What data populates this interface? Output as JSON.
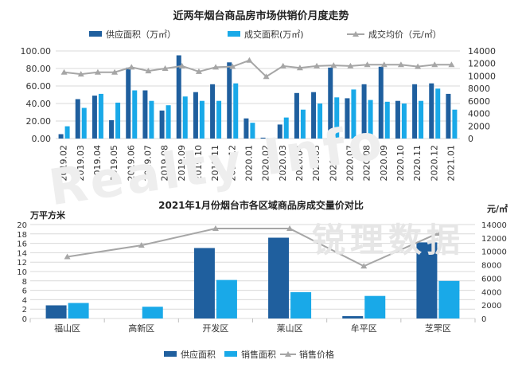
{
  "colors": {
    "supply": "#1f5f9e",
    "deal": "#19a9e8",
    "price": "#a6a6a6",
    "grid": "#d9d9d9",
    "text": "#333333"
  },
  "watermark": {
    "text": "锐理数据",
    "latin": "Realty Info"
  },
  "chart_data": [
    {
      "type": "bar",
      "title": "近两年烟台商品房市场供销价月度走势",
      "categories": [
        "2019.02",
        "2019.03",
        "2019.04",
        "2019.05",
        "2019.06",
        "2019.07",
        "2019.08",
        "2019.09",
        "2019.10",
        "2019.11",
        "2019.12",
        "2020.01",
        "2020.02",
        "2020.03",
        "2020.04",
        "2020.05",
        "2020.06",
        "2020.07",
        "2020.08",
        "2020.09",
        "2020.10",
        "2020.11",
        "2020.12",
        "2021.01"
      ],
      "series": [
        {
          "name": "供应面积（万㎡）",
          "kind": "bar",
          "axis": "left",
          "values": [
            5,
            45,
            49,
            21,
            81,
            55,
            32,
            95,
            53,
            62,
            87,
            23,
            1,
            16,
            52,
            53,
            81,
            46,
            62,
            82,
            43,
            62,
            63,
            51
          ]
        },
        {
          "name": "成交面积(万㎡)",
          "kind": "bar",
          "axis": "left",
          "values": [
            14,
            35,
            51,
            41,
            55,
            43,
            38,
            48,
            43,
            43,
            63,
            18,
            0.5,
            24,
            33,
            40,
            47,
            56,
            44,
            42,
            40,
            43,
            57,
            33
          ]
        },
        {
          "name": "成交均价（元/㎡）",
          "kind": "line",
          "axis": "right",
          "values": [
            10600,
            10300,
            10600,
            10600,
            11400,
            10800,
            11200,
            11600,
            10700,
            11400,
            11500,
            12500,
            9900,
            11600,
            11300,
            11600,
            11700,
            11600,
            11800,
            11800,
            11800,
            11500,
            11800,
            11800
          ]
        }
      ],
      "left_ticks": [
        "0.00",
        "20.00",
        "40.00",
        "60.00",
        "80.00",
        "100.00"
      ],
      "right_ticks": [
        "0",
        "2000",
        "4000",
        "6000",
        "8000",
        "10000",
        "12000",
        "14000"
      ],
      "ylim_left": [
        0,
        100
      ],
      "ylim_right": [
        0,
        14000
      ],
      "legend_position": "top"
    },
    {
      "type": "bar",
      "title": "2021年1月份烟台市各区域商品房成交量价对比",
      "ylabel": "万平方米",
      "y2label": "元/㎡",
      "categories": [
        "福山区",
        "高新区",
        "开发区",
        "莱山区",
        "牟平区",
        "芝罘区"
      ],
      "series": [
        {
          "name": "供应面积",
          "kind": "bar",
          "axis": "left",
          "values": [
            2.8,
            0,
            15,
            17.2,
            0.5,
            16.2
          ]
        },
        {
          "name": "销售面积",
          "kind": "bar",
          "axis": "left",
          "values": [
            3.3,
            2.5,
            8.2,
            5.6,
            4.8,
            8
          ]
        },
        {
          "name": "销售价格",
          "kind": "line",
          "axis": "right",
          "values": [
            9200,
            10900,
            13400,
            13400,
            7800,
            12700
          ]
        }
      ],
      "left_ticks": [
        "0",
        "2",
        "4",
        "6",
        "8",
        "10",
        "12",
        "14",
        "16",
        "18",
        "20"
      ],
      "right_ticks": [
        "0",
        "2000",
        "4000",
        "6000",
        "8000",
        "10000",
        "12000",
        "14000"
      ],
      "ylim_left": [
        0,
        20
      ],
      "ylim_right": [
        0,
        14000
      ],
      "legend_position": "bottom"
    }
  ]
}
